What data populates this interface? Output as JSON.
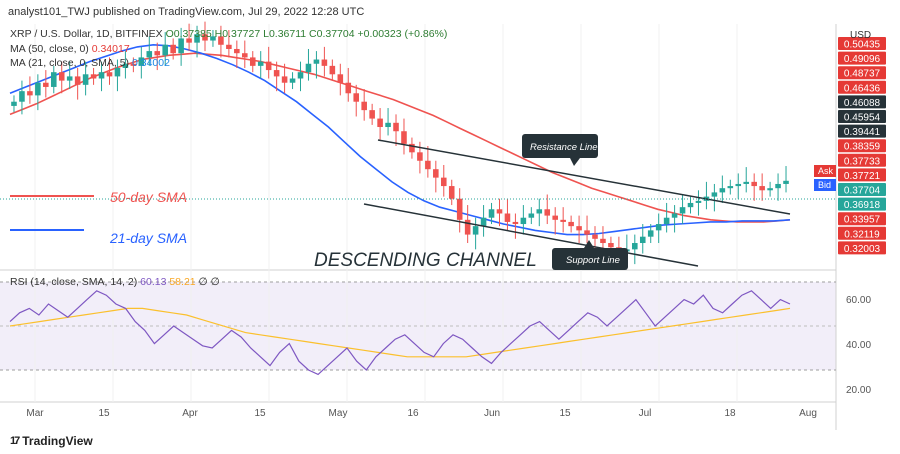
{
  "header": {
    "publisher": "analyst101_TWJ published on TradingView.com, Jul 29, 2022 12:28 UTC"
  },
  "legend": {
    "symbol": "XRP / U.S. Dollar, 1D, BITFINEX",
    "ohlc": "O0.37385 H0.37727 L0.36711 C0.37704 +0.00323 (+0.86%)",
    "ma50_label": "MA (50, close, 0)",
    "ma50_value": "0.34017",
    "ma21_label": "MA (21, close, 0, SMA, 5)",
    "ma21_value": "0.34002"
  },
  "annotations": {
    "sma50": "50-day SMA",
    "sma21": "21-day SMA",
    "channel": "DESCENDING CHANNEL",
    "resistance": "Resistance Line",
    "support": "Support Line"
  },
  "rsi_legend": {
    "label": "RSI (14, close, SMA, 14, 2)",
    "rsi": "60.13",
    "sma": "58.21",
    "extra": "∅ ∅"
  },
  "currency": "USD",
  "logo": {
    "text": "TradingView"
  },
  "colors": {
    "up": "#26a69a",
    "down": "#ef5350",
    "ma50": "#ef5350",
    "ma21": "#2962ff",
    "rsi": "#7e57c2",
    "rsi_sma": "#fbc02d",
    "line": "#263238",
    "tag_red": "#e53935"
  },
  "chart_data": {
    "type": "candlestick",
    "price_axis": {
      "min": 0.3,
      "max": 0.52,
      "ticks": [
        "0.50435",
        "0.49096",
        "0.48737",
        "0.46436",
        "0.46088",
        "0.45954",
        "0.39441",
        "0.38359",
        "0.37733",
        "0.37721",
        "0.37704",
        "0.36918",
        "0.33957",
        "0.32119",
        "0.32003"
      ]
    },
    "ask_label": "Ask",
    "bid_label": "Bid",
    "x_ticks": [
      "Mar",
      "15",
      "Apr",
      "15",
      "May",
      "16",
      "Jun",
      "15",
      "Jul",
      "18",
      "Aug"
    ],
    "rsi_ticks": [
      "60.00",
      "40.00",
      "20.00"
    ],
    "rsi_bands": [
      70,
      50,
      30
    ],
    "rsi_ylim": [
      15,
      75
    ],
    "close_series": [
      0.452,
      0.462,
      0.458,
      0.47,
      0.466,
      0.48,
      0.472,
      0.476,
      0.468,
      0.478,
      0.474,
      0.48,
      0.476,
      0.484,
      0.488,
      0.486,
      0.494,
      0.5,
      0.496,
      0.506,
      0.498,
      0.512,
      0.508,
      0.516,
      0.51,
      0.514,
      0.506,
      0.502,
      0.498,
      0.494,
      0.486,
      0.49,
      0.482,
      0.476,
      0.47,
      0.474,
      0.48,
      0.488,
      0.492,
      0.486,
      0.478,
      0.47,
      0.46,
      0.452,
      0.444,
      0.436,
      0.428,
      0.432,
      0.424,
      0.412,
      0.404,
      0.396,
      0.388,
      0.38,
      0.372,
      0.36,
      0.34,
      0.326,
      0.334,
      0.342,
      0.35,
      0.346,
      0.338,
      0.336,
      0.342,
      0.346,
      0.35,
      0.344,
      0.34,
      0.338,
      0.334,
      0.33,
      0.326,
      0.322,
      0.318,
      0.314,
      0.31,
      0.312,
      0.318,
      0.324,
      0.33,
      0.336,
      0.342,
      0.346,
      0.352,
      0.356,
      0.358,
      0.362,
      0.366,
      0.37,
      0.372,
      0.374,
      0.376,
      0.372,
      0.368,
      0.37,
      0.374,
      0.377
    ],
    "ma50_series": [
      0.44,
      0.445,
      0.45,
      0.456,
      0.462,
      0.468,
      0.474,
      0.479,
      0.484,
      0.488,
      0.492,
      0.494,
      0.496,
      0.497,
      0.498,
      0.497,
      0.496,
      0.494,
      0.492,
      0.49,
      0.487,
      0.484,
      0.481,
      0.478,
      0.474,
      0.47,
      0.466,
      0.462,
      0.458,
      0.454,
      0.449,
      0.444,
      0.439,
      0.433,
      0.427,
      0.421,
      0.415,
      0.409,
      0.403,
      0.397,
      0.391,
      0.385,
      0.38,
      0.375,
      0.37,
      0.366,
      0.362,
      0.358,
      0.354,
      0.35,
      0.347,
      0.344,
      0.342,
      0.34,
      0.339,
      0.338,
      0.338,
      0.338,
      0.339,
      0.34
    ],
    "ma21_series": [
      0.46,
      0.466,
      0.472,
      0.478,
      0.484,
      0.49,
      0.495,
      0.5,
      0.504,
      0.506,
      0.505,
      0.502,
      0.498,
      0.493,
      0.487,
      0.48,
      0.472,
      0.462,
      0.452,
      0.44,
      0.428,
      0.414,
      0.4,
      0.388,
      0.376,
      0.366,
      0.358,
      0.352,
      0.348,
      0.344,
      0.34,
      0.336,
      0.333,
      0.33,
      0.328,
      0.326,
      0.326,
      0.327,
      0.329,
      0.331,
      0.333,
      0.335,
      0.336,
      0.337,
      0.338,
      0.338,
      0.339,
      0.339,
      0.339,
      0.34
    ],
    "rsi_series": [
      52,
      56,
      58,
      55,
      60,
      57,
      54,
      58,
      62,
      66,
      64,
      60,
      58,
      52,
      48,
      42,
      46,
      50,
      47,
      44,
      41,
      40,
      44,
      48,
      45,
      40,
      36,
      32,
      38,
      42,
      34,
      30,
      28,
      32,
      36,
      40,
      34,
      30,
      36,
      40,
      44,
      46,
      42,
      38,
      36,
      42,
      46,
      44,
      40,
      36,
      33,
      38,
      42,
      46,
      50,
      52,
      48,
      44,
      48,
      52,
      56,
      54,
      50,
      54,
      58,
      62,
      56,
      50,
      54,
      58,
      62,
      60,
      64,
      58,
      56,
      60,
      64,
      66,
      62,
      58,
      62,
      60
    ],
    "rsi_sma_series": [
      50,
      51,
      52,
      53,
      54,
      55,
      56,
      57,
      58,
      58,
      57,
      56,
      55,
      53,
      51,
      49,
      47,
      46,
      45,
      44,
      43,
      42,
      41,
      40,
      39,
      38,
      37,
      36,
      36,
      36,
      36,
      36,
      37,
      38,
      39,
      40,
      41,
      42,
      43,
      44,
      45,
      46,
      47,
      48,
      49,
      50,
      51,
      52,
      53,
      54,
      55,
      56,
      57,
      58
    ]
  }
}
